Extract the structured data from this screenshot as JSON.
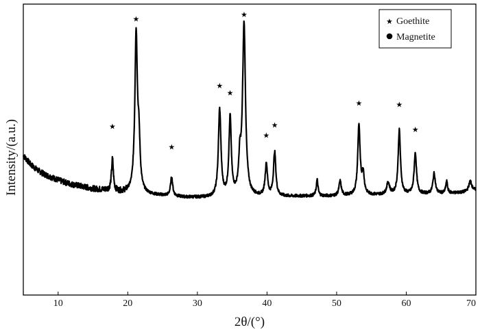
{
  "chart_data": {
    "type": "line",
    "title": "",
    "xlabel": "2θ/(°)",
    "ylabel": "Intensity/(a.u.)",
    "xlim": [
      5,
      70
    ],
    "ylim": [
      0,
      100
    ],
    "x_ticks": [
      10,
      20,
      30,
      40,
      50,
      60,
      70
    ],
    "show_y_ticks": false,
    "grid": false,
    "legend_position": "top-right",
    "legend": [
      {
        "name": "Goethite",
        "marker": "star"
      },
      {
        "name": "Magnetite",
        "marker": "circle"
      }
    ],
    "baseline": [
      [
        5,
        48
      ],
      [
        6,
        45
      ],
      [
        7,
        43
      ],
      [
        8,
        41.5
      ],
      [
        9,
        40.5
      ],
      [
        10,
        39.5
      ],
      [
        11,
        38.7
      ],
      [
        12,
        38
      ],
      [
        13,
        37.5
      ],
      [
        14,
        37
      ],
      [
        15,
        36.5
      ],
      [
        16,
        36.2
      ],
      [
        17,
        36
      ],
      [
        18,
        35.5
      ],
      [
        19,
        35.3
      ],
      [
        20,
        35.2
      ],
      [
        21,
        35
      ],
      [
        22,
        34.7
      ],
      [
        24,
        34.3
      ],
      [
        26,
        34
      ],
      [
        28,
        33.6
      ],
      [
        30,
        33.5
      ],
      [
        32,
        33.4
      ],
      [
        34,
        33.4
      ],
      [
        36,
        33.6
      ],
      [
        38,
        33.7
      ],
      [
        40,
        33.7
      ],
      [
        42,
        33.8
      ],
      [
        44,
        33.9
      ],
      [
        46,
        34
      ],
      [
        48,
        34
      ],
      [
        50,
        34
      ],
      [
        52,
        34.2
      ],
      [
        54,
        34.3
      ],
      [
        56,
        34.4
      ],
      [
        58,
        34.5
      ],
      [
        60,
        34.6
      ],
      [
        62,
        34.7
      ],
      [
        64,
        34.8
      ],
      [
        66,
        35
      ],
      [
        68,
        35.2
      ],
      [
        70,
        36
      ]
    ],
    "peaks": [
      {
        "x": 17.8,
        "height": 11,
        "width": 0.16,
        "phase": "Goethite",
        "marker_y": 58
      },
      {
        "x": 21.2,
        "height": 54,
        "width": 0.22,
        "phase": "Goethite",
        "marker_y": 95
      },
      {
        "x": 21.6,
        "height": 15,
        "width": 0.2,
        "phase": ""
      },
      {
        "x": 26.3,
        "height": 6.5,
        "width": 0.18,
        "phase": "Goethite",
        "marker_y": 51
      },
      {
        "x": 33.2,
        "height": 30,
        "width": 0.22,
        "phase": "Goethite",
        "marker_y": 72
      },
      {
        "x": 34.7,
        "height": 27,
        "width": 0.2,
        "phase": "Goethite",
        "marker_y": 69.5
      },
      {
        "x": 36.1,
        "height": 11,
        "width": 0.2,
        "phase": ""
      },
      {
        "x": 36.7,
        "height": 59,
        "width": 0.25,
        "phase": "Goethite",
        "marker_y": 96.5
      },
      {
        "x": 39.9,
        "height": 11,
        "width": 0.2,
        "phase": "Goethite",
        "marker_y": 55
      },
      {
        "x": 41.1,
        "height": 15,
        "width": 0.2,
        "phase": "Goethite",
        "marker_y": 58.5
      },
      {
        "x": 47.2,
        "height": 5.5,
        "width": 0.15,
        "phase": ""
      },
      {
        "x": 50.5,
        "height": 5,
        "width": 0.2,
        "phase": ""
      },
      {
        "x": 53.2,
        "height": 24,
        "width": 0.2,
        "phase": "Goethite",
        "marker_y": 66
      },
      {
        "x": 53.8,
        "height": 7,
        "width": 0.2,
        "phase": ""
      },
      {
        "x": 57.4,
        "height": 4,
        "width": 0.25,
        "phase": ""
      },
      {
        "x": 59.0,
        "height": 22,
        "width": 0.2,
        "phase": "Goethite",
        "marker_y": 65.5
      },
      {
        "x": 61.3,
        "height": 14,
        "width": 0.2,
        "phase": "Goethite",
        "marker_y": 57
      },
      {
        "x": 64.0,
        "height": 7,
        "width": 0.2,
        "phase": ""
      },
      {
        "x": 65.8,
        "height": 4,
        "width": 0.15,
        "phase": ""
      },
      {
        "x": 69.2,
        "height": 3.5,
        "width": 0.25,
        "phase": ""
      }
    ]
  }
}
